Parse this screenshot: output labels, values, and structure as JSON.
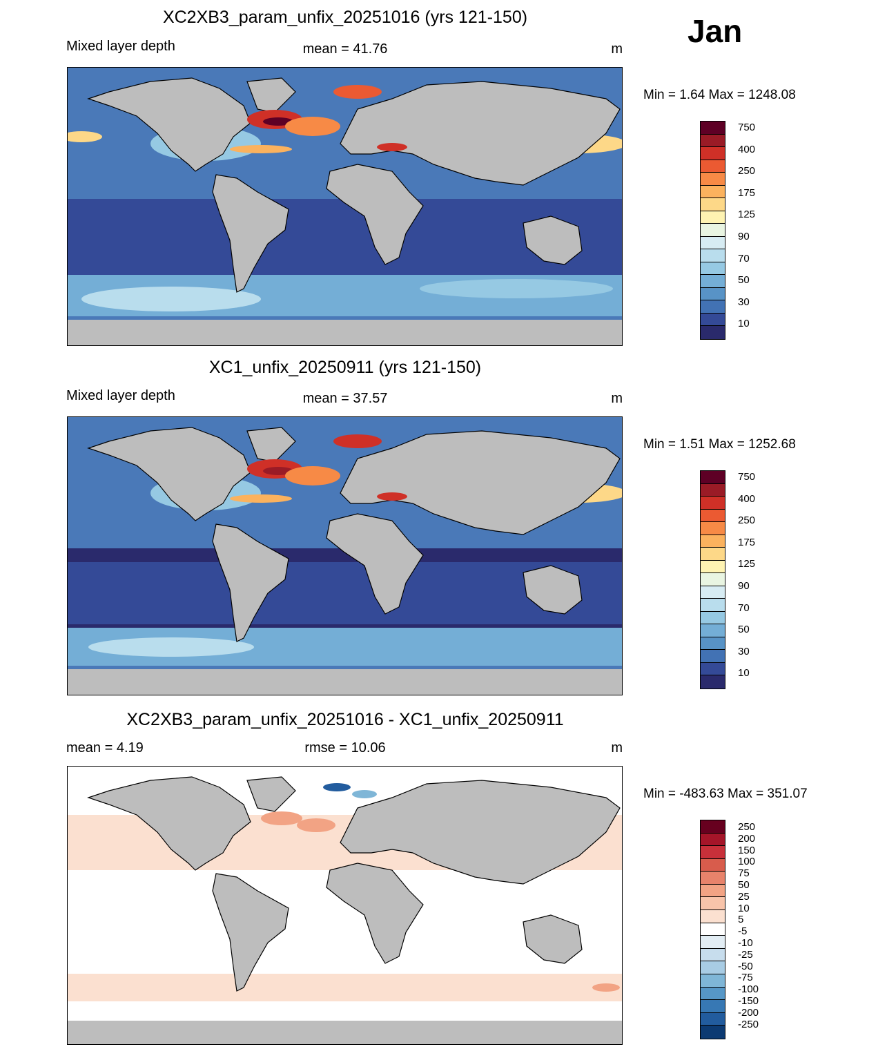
{
  "month": "Jan",
  "panels": [
    {
      "title": "XC2XB3_param_unfix_20251016 (yrs 121-150)",
      "left_label": "Mixed layer depth",
      "center_label": "mean =  41.76",
      "units": "m",
      "minmax": "Min =   1.64 Max = 1248.08",
      "colorbar": {
        "colors": [
          "#5e0025",
          "#9a1b26",
          "#cf3027",
          "#eb5a32",
          "#f78a46",
          "#fbb25e",
          "#fdd888",
          "#fef3b2",
          "#e9f5e2",
          "#d7ecf3",
          "#b9dded",
          "#96c9e3",
          "#74aed6",
          "#5893c6",
          "#4272b4",
          "#344a97",
          "#2a2a6c"
        ],
        "labels": [
          "750",
          "400",
          "250",
          "175",
          "125",
          "90",
          "70",
          "50",
          "30",
          "10"
        ]
      }
    },
    {
      "title": "XC1_unfix_20250911 (yrs 121-150)",
      "left_label": "Mixed layer depth",
      "center_label": "mean =  37.57",
      "units": "m",
      "minmax": "Min =   1.51 Max = 1252.68",
      "colorbar": {
        "colors": [
          "#5e0025",
          "#9a1b26",
          "#cf3027",
          "#eb5a32",
          "#f78a46",
          "#fbb25e",
          "#fdd888",
          "#fef3b2",
          "#e9f5e2",
          "#d7ecf3",
          "#b9dded",
          "#96c9e3",
          "#74aed6",
          "#5893c6",
          "#4272b4",
          "#344a97",
          "#2a2a6c"
        ],
        "labels": [
          "750",
          "400",
          "250",
          "175",
          "125",
          "90",
          "70",
          "50",
          "30",
          "10"
        ]
      }
    },
    {
      "title": "XC2XB3_param_unfix_20251016 - XC1_unfix_20250911",
      "left_label": "mean =   4.19",
      "center_label": "rmse =  10.06",
      "units": "m",
      "minmax": "Min = -483.63 Max = 351.07",
      "colorbar": {
        "colors": [
          "#67001f",
          "#a51529",
          "#c8303a",
          "#d85c4c",
          "#e8836b",
          "#f2a384",
          "#f8c4aa",
          "#fbe0d0",
          "#ffffff",
          "#e2edf4",
          "#c7dded",
          "#a8cce4",
          "#7fb6d7",
          "#5697c7",
          "#3778b4",
          "#225c9e",
          "#0c3a72"
        ],
        "labels": [
          "250",
          "200",
          "150",
          "100",
          "75",
          "50",
          "25",
          "10",
          "5",
          "-5",
          "-10",
          "-25",
          "-50",
          "-75",
          "-100",
          "-150",
          "-200",
          "-250"
        ]
      }
    }
  ]
}
